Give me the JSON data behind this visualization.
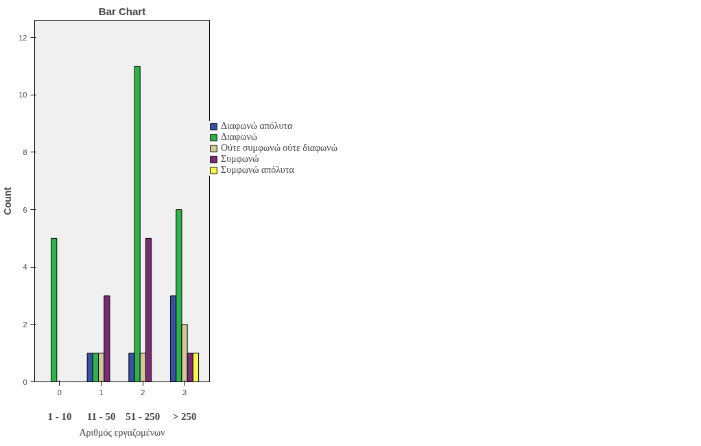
{
  "chart_data": {
    "type": "bar",
    "title": "Bar Chart",
    "xlabel": "Αριθμός εργαζομένων",
    "ylabel": "Count",
    "categories": [
      "0",
      "1",
      "2",
      "3"
    ],
    "annotations": [
      "1 - 10",
      "11 - 50",
      "51 - 250",
      "> 250"
    ],
    "series": [
      {
        "name": "Διαφωνώ απόλυτα",
        "color": "#3953a4",
        "values": [
          null,
          1,
          1,
          3
        ]
      },
      {
        "name": "Διαφωνώ",
        "color": "#2db34a",
        "values": [
          5,
          1,
          11,
          6
        ]
      },
      {
        "name": "Ούτε συμφωνώ ούτε διαφωνώ",
        "color": "#d2c99a",
        "values": [
          null,
          1,
          1,
          2
        ]
      },
      {
        "name": "Συμφωνώ",
        "color": "#7b2a75",
        "values": [
          null,
          3,
          5,
          1
        ]
      },
      {
        "name": "Συμφωνώ απόλυτα",
        "color": "#fbf74f",
        "values": [
          null,
          null,
          null,
          1
        ]
      }
    ],
    "ylim": [
      0,
      12.6
    ],
    "yticks": [
      0,
      2,
      4,
      6,
      8,
      10,
      12
    ],
    "grid": false,
    "legend": "top right"
  }
}
